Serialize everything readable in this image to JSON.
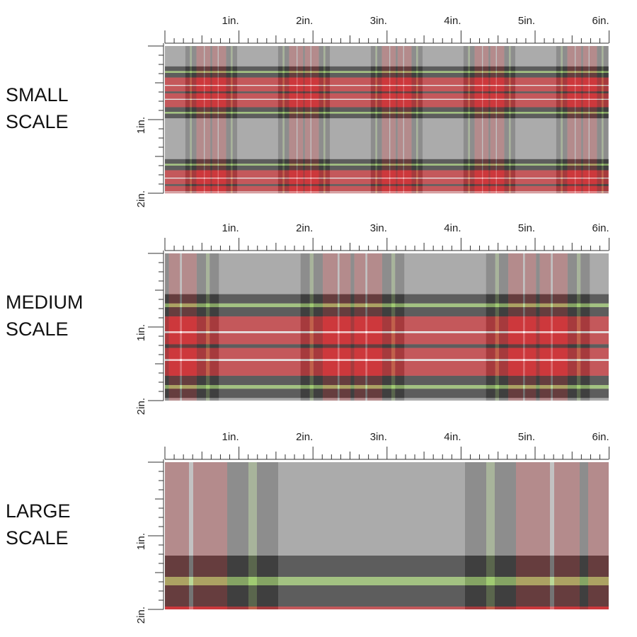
{
  "panels": [
    {
      "label_lines": [
        "SMALL",
        "SCALE"
      ]
    },
    {
      "label_lines": [
        "MEDIUM",
        "SCALE"
      ]
    },
    {
      "label_lines": [
        "LARGE",
        "SCALE"
      ]
    }
  ],
  "ruler_labels": {
    "horizontal": [
      "1in.",
      "2in.",
      "3in.",
      "4in.",
      "5in.",
      "6in."
    ],
    "vertical": [
      "1in.",
      "2in."
    ]
  }
}
